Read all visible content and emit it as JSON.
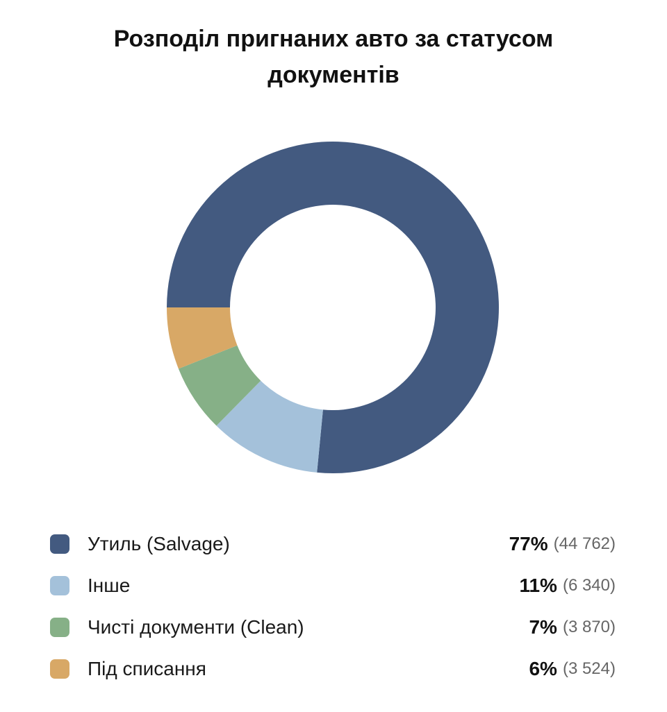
{
  "chart_data": {
    "type": "pie",
    "variant": "donut",
    "title_lines": [
      "Розподіл пригнаних авто за статусом",
      "документів"
    ],
    "slices": [
      {
        "label": "Утиль (Salvage)",
        "percent_label": "77%",
        "count_label": "(44 762)",
        "value": 44762,
        "color": "#435a80"
      },
      {
        "label": "Інше",
        "percent_label": "11%",
        "count_label": "(6 340)",
        "value": 6340,
        "color": "#a4c1da"
      },
      {
        "label": "Чисті документи (Clean)",
        "percent_label": "7%",
        "count_label": "(3 870)",
        "value": 3870,
        "color": "#86b087"
      },
      {
        "label": "Під списання",
        "percent_label": "6%",
        "count_label": "(3 524)",
        "value": 3524,
        "color": "#d8a866"
      }
    ],
    "legend_position": "bottom"
  }
}
